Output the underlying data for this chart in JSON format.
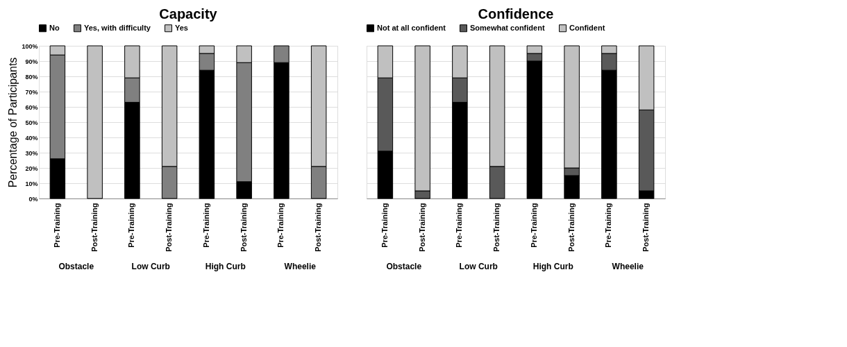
{
  "chart_data": [
    {
      "type": "bar",
      "title": "Capacity",
      "ylabel": "Percentage of Participants",
      "stacked": true,
      "legend": "top",
      "grid": "y",
      "categories": [
        "Pre-Training",
        "Post-Training",
        "Pre-Training",
        "Post-Training",
        "Pre-Training",
        "Post-Training",
        "Pre-Training",
        "Post-Training"
      ],
      "annotations": [
        "Obstacle",
        "Low Curb",
        "High Curb",
        "Wheelie"
      ],
      "ylim": [
        0,
        100
      ],
      "yticks": [
        {
          "value": 0,
          "label": "0%"
        },
        {
          "value": 10,
          "label": "10%"
        },
        {
          "value": 20,
          "label": "20%"
        },
        {
          "value": 30,
          "label": "30%"
        },
        {
          "value": 40,
          "label": "40%"
        },
        {
          "value": 50,
          "label": "50%"
        },
        {
          "value": 60,
          "label": "60%"
        },
        {
          "value": 70,
          "label": "70%"
        },
        {
          "value": 80,
          "label": "80%"
        },
        {
          "value": 90,
          "label": "90%"
        },
        {
          "value": 100,
          "label": "100%"
        }
      ],
      "series": [
        {
          "name": "No",
          "color": "#000000",
          "values": [
            26,
            0,
            63,
            0,
            84,
            11,
            89,
            0
          ]
        },
        {
          "name": "Yes, with difficulty",
          "color": "#808080",
          "values": [
            68,
            0,
            16,
            21,
            11,
            78,
            11,
            21
          ]
        },
        {
          "name": "Yes",
          "color": "#c0c0c0",
          "values": [
            6,
            100,
            21,
            79,
            5,
            11,
            0,
            79
          ]
        }
      ]
    },
    {
      "type": "bar",
      "title": "Confidence",
      "stacked": true,
      "legend": "top",
      "grid": "y",
      "tick_labels": "x",
      "categories": [
        "Pre-Training",
        "Post-Training",
        "Pre-Training",
        "Post-Training",
        "Pre-Training",
        "Post-Training",
        "Pre-Training",
        "Post-Training"
      ],
      "annotations": [
        "Obstacle",
        "Low Curb",
        "High Curb",
        "Wheelie"
      ],
      "ylim": [
        0,
        100
      ],
      "yticks": [
        {
          "value": 0,
          "label": null
        },
        {
          "value": 10,
          "label": null
        },
        {
          "value": 20,
          "label": null
        },
        {
          "value": 30,
          "label": null
        },
        {
          "value": 40,
          "label": null
        },
        {
          "value": 50,
          "label": null
        },
        {
          "value": 60,
          "label": null
        },
        {
          "value": 70,
          "label": null
        },
        {
          "value": 80,
          "label": null
        },
        {
          "value": 90,
          "label": null
        },
        {
          "value": 100,
          "label": null
        }
      ],
      "series": [
        {
          "name": "Not at all confident",
          "color": "#000000",
          "values": [
            31,
            0,
            63,
            0,
            90,
            15,
            84,
            5
          ]
        },
        {
          "name": "Somewhat confident",
          "color": "#595959",
          "values": [
            48,
            5,
            16,
            21,
            5,
            5,
            11,
            53
          ]
        },
        {
          "name": "Confident",
          "color": "#c0c0c0",
          "values": [
            21,
            95,
            21,
            79,
            5,
            80,
            5,
            42
          ]
        }
      ]
    }
  ]
}
